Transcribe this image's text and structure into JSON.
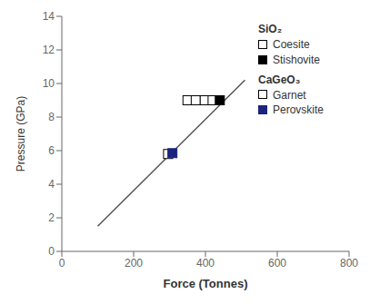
{
  "chart_data": {
    "type": "scatter",
    "xlabel": "Force (Tonnes)",
    "ylabel": "Pressure (GPa)",
    "xlim": [
      0,
      800
    ],
    "ylim": [
      0,
      14
    ],
    "xticks": [
      0,
      200,
      400,
      600,
      800
    ],
    "yticks": [
      0,
      2,
      4,
      6,
      8,
      10,
      12,
      14
    ],
    "grid": false,
    "legend": "upper right",
    "series": [
      {
        "type": "line",
        "color": "#555555",
        "x": [
          100,
          510
        ],
        "values": [
          1.5,
          10.2
        ]
      },
      {
        "name": "Coesite",
        "group": "SiO₂",
        "type": "scatter",
        "marker": "open square",
        "color": "black",
        "x": [
          350,
          373,
          398,
          420
        ],
        "values": [
          9.0,
          9.0,
          9.0,
          9.0
        ]
      },
      {
        "name": "Stishovite",
        "group": "SiO₂",
        "type": "scatter",
        "marker": "square",
        "color": "black",
        "x": [
          440
        ],
        "values": [
          9.0
        ]
      },
      {
        "name": "Garnet",
        "group": "CaGeO₃",
        "type": "scatter",
        "marker": "open square",
        "color": "black",
        "x": [
          296
        ],
        "values": [
          5.8
        ]
      },
      {
        "name": "Perovskite",
        "group": "CaGeO₃",
        "type": "scatter",
        "marker": "square",
        "color": "#1a237e",
        "x": [
          308
        ],
        "values": [
          5.85
        ]
      }
    ]
  }
}
